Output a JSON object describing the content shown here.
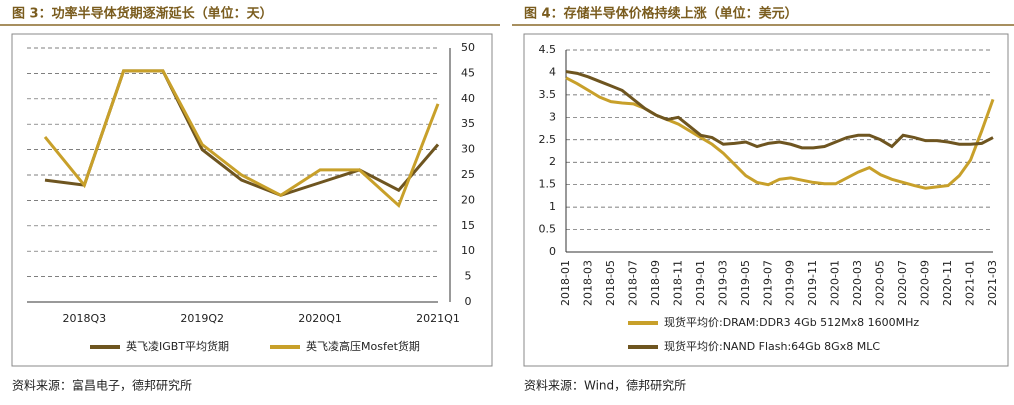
{
  "chart_data": [
    {
      "type": "line",
      "title": "图 3：功率半导体货期逐渐延长（单位：天）",
      "source": "资料来源：富昌电子，德邦研究所",
      "categories": [
        null,
        "2018Q3",
        null,
        null,
        "2019Q2",
        null,
        null,
        "2020Q1",
        null,
        null,
        "2021Q1"
      ],
      "series": [
        {
          "name": "英飞凌IGBT平均货期",
          "color": "#6e5520",
          "values": [
            24,
            23,
            45.5,
            45.5,
            30,
            24,
            21,
            23.5,
            26,
            22,
            31
          ]
        },
        {
          "name": "英飞凌高压Mosfet货期",
          "color": "#c8a02a",
          "values": [
            32.5,
            23,
            45.5,
            45.5,
            31,
            25,
            21,
            26,
            26,
            19,
            39
          ]
        }
      ],
      "ylim": [
        0,
        50
      ],
      "yticks": [
        0,
        5,
        10,
        15,
        20,
        25,
        30,
        35,
        40,
        45,
        50
      ],
      "grid": true,
      "y_axis_side": "right"
    },
    {
      "type": "line",
      "title": "图 4：存储半导体价格持续上涨（单位：美元）",
      "source": "资料来源：Wind，德邦研究所",
      "categories": [
        "2018-01",
        null,
        "2018-03",
        null,
        "2018-05",
        null,
        "2018-07",
        null,
        "2018-09",
        null,
        "2018-11",
        null,
        "2019-01",
        null,
        "2019-03",
        null,
        "2019-05",
        null,
        "2019-07",
        null,
        "2019-09",
        null,
        "2019-11",
        null,
        "2020-01",
        null,
        "2020-03",
        null,
        "2020-05",
        null,
        "2020-07",
        null,
        "2020-09",
        null,
        "2020-11",
        null,
        "2021-01",
        null,
        "2021-03"
      ],
      "series": [
        {
          "name": "现货平均价:DRAM:DDR3 4Gb 512Mx8 1600MHz",
          "color": "#c8a02a",
          "values": [
            3.88,
            3.75,
            3.6,
            3.45,
            3.35,
            3.32,
            3.3,
            3.2,
            3.05,
            2.95,
            2.85,
            2.7,
            2.55,
            2.4,
            2.2,
            1.95,
            1.7,
            1.55,
            1.5,
            1.62,
            1.65,
            1.6,
            1.55,
            1.52,
            1.52,
            1.65,
            1.78,
            1.88,
            1.72,
            1.62,
            1.55,
            1.48,
            1.42,
            1.45,
            1.48,
            1.7,
            2.05,
            2.7,
            3.4
          ]
        },
        {
          "name": "现货平均价:NAND Flash:64Gb 8Gx8 MLC",
          "color": "#6e5520",
          "values": [
            4.02,
            3.98,
            3.9,
            3.8,
            3.7,
            3.6,
            3.4,
            3.2,
            3.05,
            2.95,
            3.0,
            2.8,
            2.6,
            2.55,
            2.4,
            2.42,
            2.45,
            2.35,
            2.42,
            2.45,
            2.4,
            2.32,
            2.32,
            2.35,
            2.45,
            2.55,
            2.6,
            2.6,
            2.5,
            2.35,
            2.6,
            2.55,
            2.48,
            2.48,
            2.45,
            2.4,
            2.4,
            2.42,
            2.55
          ]
        }
      ],
      "ylim": [
        0,
        4.5
      ],
      "yticks": [
        0,
        0.5,
        1,
        1.5,
        2,
        2.5,
        3,
        3.5,
        4,
        4.5
      ],
      "grid": true,
      "y_axis_side": "left"
    }
  ]
}
